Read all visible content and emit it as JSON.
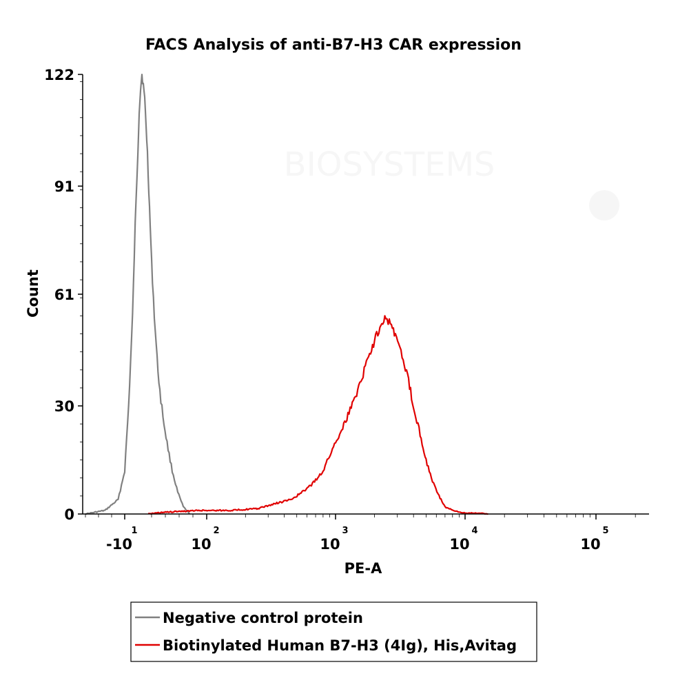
{
  "chart_data": {
    "type": "area",
    "title": "FACS Analysis of anti-B7-H3 CAR expression",
    "xlabel": "PE-A",
    "ylabel": "Count",
    "ylim": [
      0,
      122
    ],
    "y_ticks": [
      "0",
      "30",
      "61",
      "91",
      "122"
    ],
    "x_ticks": [
      {
        "base": "-10",
        "exp": "1"
      },
      {
        "base": "10",
        "exp": "2"
      },
      {
        "base": "10",
        "exp": "3"
      },
      {
        "base": "10",
        "exp": "4"
      },
      {
        "base": "10",
        "exp": "5"
      }
    ],
    "x_scale": "biexponential",
    "watermark": "BIOSYSTEMS",
    "legend_position": "bottom-center",
    "series": [
      {
        "name": "Negative control protein",
        "color": "#808080",
        "points": [
          [
            -40,
            0
          ],
          [
            -25,
            1
          ],
          [
            -15,
            4
          ],
          [
            -10,
            12
          ],
          [
            -7,
            30
          ],
          [
            -4,
            55
          ],
          [
            -2,
            80
          ],
          [
            0,
            100
          ],
          [
            2,
            112
          ],
          [
            4,
            118
          ],
          [
            6,
            122
          ],
          [
            8,
            119
          ],
          [
            10,
            115
          ],
          [
            12,
            108
          ],
          [
            14,
            100
          ],
          [
            16,
            90
          ],
          [
            18,
            80
          ],
          [
            20,
            70
          ],
          [
            24,
            55
          ],
          [
            28,
            43
          ],
          [
            32,
            34
          ],
          [
            38,
            25
          ],
          [
            44,
            18
          ],
          [
            50,
            12
          ],
          [
            58,
            6
          ],
          [
            66,
            2
          ],
          [
            75,
            0
          ]
        ]
      },
      {
        "name": "Biotinylated Human B7-H3 (4Ig), His,Avitag",
        "color": "#e00000",
        "points": [
          [
            15,
            0
          ],
          [
            40,
            0.5
          ],
          [
            90,
            1
          ],
          [
            150,
            1
          ],
          [
            250,
            1.5
          ],
          [
            350,
            3
          ],
          [
            450,
            4
          ],
          [
            550,
            6
          ],
          [
            650,
            8
          ],
          [
            800,
            12
          ],
          [
            1000,
            20
          ],
          [
            1200,
            26
          ],
          [
            1400,
            32
          ],
          [
            1600,
            38
          ],
          [
            1800,
            44
          ],
          [
            2000,
            48
          ],
          [
            2200,
            52
          ],
          [
            2400,
            55
          ],
          [
            2600,
            53
          ],
          [
            2900,
            50
          ],
          [
            3200,
            45
          ],
          [
            3600,
            38
          ],
          [
            4000,
            30
          ],
          [
            4500,
            22
          ],
          [
            5000,
            15
          ],
          [
            5600,
            9
          ],
          [
            6300,
            5
          ],
          [
            7000,
            2
          ],
          [
            8000,
            1
          ],
          [
            9000,
            0.5
          ],
          [
            10000,
            0.3
          ],
          [
            12000,
            0.3
          ],
          [
            15000,
            0
          ]
        ]
      }
    ]
  }
}
